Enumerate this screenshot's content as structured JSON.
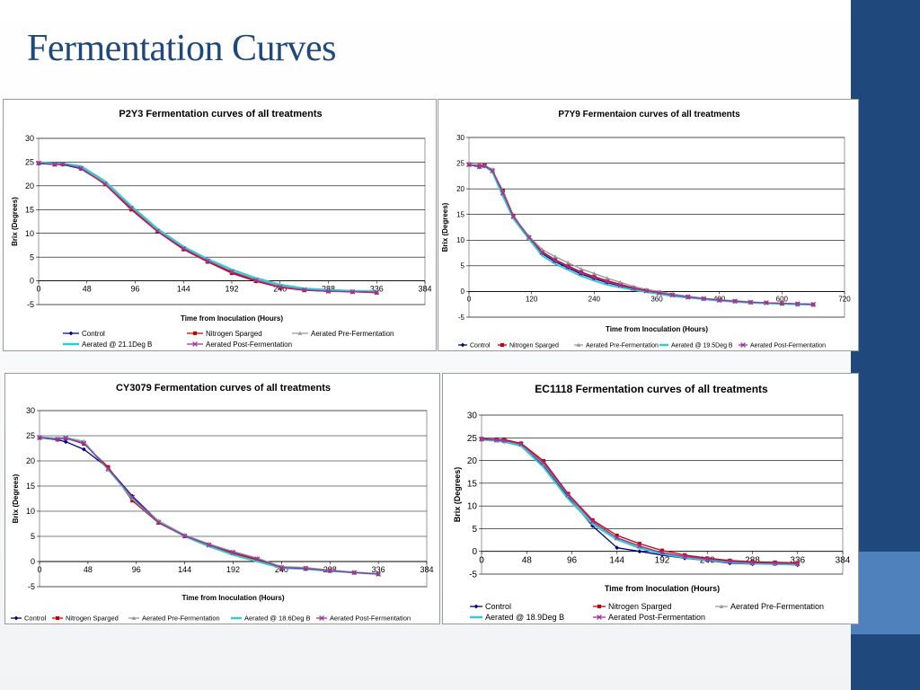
{
  "slide": {
    "title": "Fermentation Curves"
  },
  "colors": {
    "accent_dark": "#1f497d",
    "accent_light": "#4f81bd"
  },
  "chart_data": [
    {
      "type": "line",
      "title": "P2Y3 Fermentation curves of all treatments",
      "xlabel": "Time from Inoculation (Hours)",
      "ylabel": "Brix (Degrees)",
      "xlim": [
        0,
        384
      ],
      "ylim": [
        -5,
        30
      ],
      "x_ticks": [
        0,
        48,
        96,
        144,
        192,
        240,
        288,
        336,
        384
      ],
      "y_ticks": [
        -5,
        0,
        5,
        10,
        15,
        20,
        25,
        30
      ],
      "grid": "horizontal",
      "legend": "bottom",
      "series": [
        {
          "name": "Control",
          "color": "#000080",
          "marker": "diamond",
          "x": [
            0,
            16,
            24,
            42,
            66,
            92,
            118,
            144,
            168,
            192,
            216,
            240,
            264,
            288,
            312,
            336
          ],
          "y": [
            24.7,
            24.5,
            24.5,
            23.6,
            20.4,
            15.2,
            10.5,
            6.8,
            4.1,
            1.8,
            0.0,
            -1.3,
            -1.9,
            -2.2,
            -2.3,
            -2.4
          ]
        },
        {
          "name": "Nitrogen Sparged",
          "color": "#cc0000",
          "marker": "square",
          "x": [
            0,
            16,
            24,
            42,
            66,
            92,
            118,
            144,
            168,
            192,
            216,
            240,
            264,
            288,
            312,
            336
          ],
          "y": [
            24.8,
            24.5,
            24.6,
            23.8,
            20.3,
            15.0,
            10.4,
            6.6,
            4.0,
            1.6,
            -0.1,
            -1.4,
            -2.0,
            -2.2,
            -2.3,
            -2.5
          ]
        },
        {
          "name": "Aerated Pre-Fermentation",
          "color": "#999999",
          "marker": "triangle",
          "x": [
            0,
            16,
            24,
            42,
            66,
            92,
            118,
            144,
            168,
            192,
            216,
            240,
            264,
            288,
            312,
            336
          ],
          "y": [
            24.9,
            24.6,
            24.7,
            24.0,
            20.6,
            15.4,
            10.7,
            7.0,
            4.3,
            2.0,
            0.3,
            -1.1,
            -1.8,
            -2.1,
            -2.2,
            -2.3
          ]
        },
        {
          "name": "Aerated @ 21.1Deg B",
          "color": "#33cccc",
          "marker": "none",
          "x": [
            0,
            16,
            24,
            42,
            66,
            92,
            118,
            144,
            168,
            192,
            216,
            240,
            264,
            288,
            312,
            336
          ],
          "y": [
            25.0,
            24.7,
            24.7,
            24.2,
            21.0,
            15.8,
            11.0,
            7.2,
            4.6,
            2.4,
            0.6,
            -0.8,
            -1.6,
            -1.9,
            -2.1,
            -2.2
          ]
        },
        {
          "name": "Aerated Post-Fermentation",
          "color": "#993399",
          "marker": "x",
          "x": [
            0,
            16,
            24,
            42,
            66,
            92,
            118,
            144,
            168,
            192,
            216,
            240,
            264,
            288,
            312,
            336
          ],
          "y": [
            24.8,
            24.5,
            24.6,
            23.7,
            20.4,
            15.3,
            10.5,
            6.8,
            4.2,
            1.9,
            0.1,
            -1.3,
            -1.9,
            -2.2,
            -2.3,
            -2.4
          ]
        }
      ]
    },
    {
      "type": "line",
      "title": "P7Y9 Fermentaion curves of all treatments",
      "xlabel": "Time from Inoculation (Hours)",
      "ylabel": "Brix (Degrees)",
      "xlim": [
        0,
        720
      ],
      "ylim": [
        -5,
        30
      ],
      "x_ticks": [
        0,
        120,
        240,
        360,
        480,
        600,
        720
      ],
      "y_ticks": [
        -5,
        0,
        5,
        10,
        15,
        20,
        25,
        30
      ],
      "grid": "horizontal",
      "legend": "bottom",
      "series": [
        {
          "name": "Control",
          "color": "#000080",
          "marker": "diamond",
          "x": [
            0,
            20,
            30,
            45,
            65,
            85,
            115,
            140,
            165,
            190,
            215,
            240,
            265,
            290,
            315,
            340,
            365,
            390,
            420,
            450,
            480,
            510,
            540,
            570,
            600,
            630,
            660
          ],
          "y": [
            24.7,
            24.2,
            24.4,
            23.4,
            18.8,
            14.4,
            10.4,
            7.4,
            5.8,
            4.6,
            3.4,
            2.5,
            1.7,
            1.1,
            0.5,
            0.1,
            -0.3,
            -0.7,
            -1.1,
            -1.4,
            -1.7,
            -1.9,
            -2.1,
            -2.2,
            -2.3,
            -2.4,
            -2.5
          ]
        },
        {
          "name": "Nitrogen Sparged",
          "color": "#cc0000",
          "marker": "square",
          "x": [
            0,
            20,
            30,
            45,
            65,
            85,
            115,
            140,
            165,
            190,
            215,
            240,
            265,
            290,
            315,
            340,
            365,
            390,
            420,
            450,
            480,
            510,
            540,
            570,
            600,
            630,
            660
          ],
          "y": [
            24.8,
            24.5,
            24.6,
            23.6,
            19.6,
            14.8,
            10.6,
            7.8,
            6.2,
            5.0,
            3.8,
            2.9,
            2.1,
            1.4,
            0.7,
            0.2,
            -0.2,
            -0.6,
            -1.0,
            -1.4,
            -1.7,
            -1.9,
            -2.1,
            -2.2,
            -2.4,
            -2.5,
            -2.6
          ]
        },
        {
          "name": "Aerated Pre-Fermentation",
          "color": "#999999",
          "marker": "triangle",
          "x": [
            0,
            20,
            30,
            45,
            65,
            85,
            115,
            140,
            165,
            190,
            215,
            240,
            265,
            290,
            315,
            340,
            365,
            390,
            420,
            450,
            480,
            510,
            540,
            570,
            600,
            630,
            660
          ],
          "y": [
            24.9,
            24.3,
            24.5,
            23.8,
            19.4,
            14.6,
            10.8,
            8.2,
            6.8,
            5.6,
            4.4,
            3.5,
            2.6,
            1.8,
            1.0,
            0.4,
            0.0,
            -0.5,
            -0.9,
            -1.3,
            -1.6,
            -1.8,
            -2.0,
            -2.2,
            -2.3,
            -2.4,
            -2.5
          ]
        },
        {
          "name": "Aerated @ 19.5Deg B",
          "color": "#33cccc",
          "marker": "none",
          "x": [
            0,
            20,
            30,
            45,
            65,
            85,
            115,
            140,
            165,
            190,
            215,
            240,
            265,
            290,
            315,
            340,
            365,
            390,
            420,
            450,
            480,
            510,
            540,
            570,
            600,
            630,
            660
          ],
          "y": [
            24.7,
            24.3,
            24.4,
            23.3,
            18.6,
            14.2,
            10.2,
            7.0,
            5.4,
            4.2,
            3.0,
            2.1,
            1.3,
            0.8,
            0.3,
            -0.1,
            -0.5,
            -0.9,
            -1.2,
            -1.5,
            -1.8,
            -2.0,
            -2.2,
            -2.3,
            -2.4,
            -2.5,
            -2.6
          ]
        },
        {
          "name": "Aerated Post-Fermentation",
          "color": "#993399",
          "marker": "x",
          "x": [
            0,
            20,
            30,
            45,
            65,
            85,
            115,
            140,
            165,
            190,
            215,
            240,
            265,
            290,
            315,
            340,
            365,
            390,
            420,
            450,
            480,
            510,
            540,
            570,
            600,
            630,
            660
          ],
          "y": [
            24.7,
            24.3,
            24.5,
            23.5,
            19.2,
            14.6,
            10.5,
            7.6,
            6.0,
            4.8,
            3.6,
            2.7,
            1.9,
            1.2,
            0.6,
            0.1,
            -0.3,
            -0.7,
            -1.1,
            -1.4,
            -1.7,
            -1.9,
            -2.1,
            -2.2,
            -2.3,
            -2.4,
            -2.5
          ]
        }
      ]
    },
    {
      "type": "line",
      "title": "CY3079 Fermentation curves of all treatments",
      "xlabel": "Time from Inoculation (Hours)",
      "ylabel": "Brix (Degrees)",
      "xlim": [
        0,
        384
      ],
      "ylim": [
        -5,
        30
      ],
      "x_ticks": [
        0,
        48,
        96,
        144,
        192,
        240,
        288,
        336,
        384
      ],
      "y_ticks": [
        -5,
        0,
        5,
        10,
        15,
        20,
        25,
        30
      ],
      "grid": "horizontal",
      "legend": "bottom",
      "series": [
        {
          "name": "Control",
          "color": "#000080",
          "marker": "diamond",
          "x": [
            0,
            18,
            26,
            44,
            68,
            92,
            118,
            144,
            168,
            192,
            216,
            240,
            264,
            288,
            312,
            336
          ],
          "y": [
            24.6,
            24.2,
            23.8,
            22.3,
            18.6,
            13.0,
            8.0,
            5.2,
            3.4,
            1.9,
            0.6,
            -1.1,
            -1.5,
            -1.9,
            -2.2,
            -2.5
          ]
        },
        {
          "name": "Nitrogen Sparged",
          "color": "#cc0000",
          "marker": "square",
          "x": [
            0,
            18,
            26,
            44,
            68,
            92,
            118,
            144,
            168,
            192,
            216,
            240,
            264,
            288,
            312,
            336
          ],
          "y": [
            24.7,
            24.3,
            24.5,
            23.4,
            18.8,
            12.1,
            7.7,
            5.0,
            3.2,
            1.6,
            0.3,
            -1.4,
            -1.3,
            -1.8,
            -2.2,
            -2.5
          ]
        },
        {
          "name": "Aerated Pre-Fermentation",
          "color": "#999999",
          "marker": "triangle",
          "x": [
            0,
            18,
            26,
            44,
            68,
            92,
            118,
            144,
            168,
            192,
            216,
            240,
            264,
            288,
            312,
            336
          ],
          "y": [
            24.8,
            24.5,
            24.7,
            23.9,
            18.2,
            12.6,
            8.1,
            5.3,
            3.5,
            2.0,
            0.7,
            -1.0,
            -1.2,
            -1.7,
            -2.1,
            -2.4
          ]
        },
        {
          "name": "Aerated @ 18.6Deg B",
          "color": "#33cccc",
          "marker": "none",
          "x": [
            0,
            18,
            26,
            44,
            68,
            92,
            118,
            144,
            168,
            192,
            216,
            240,
            264,
            288,
            312,
            336
          ],
          "y": [
            24.7,
            24.4,
            24.6,
            23.6,
            18.4,
            12.5,
            7.9,
            5.0,
            3.0,
            1.3,
            0.0,
            -1.3,
            -1.5,
            -1.9,
            -2.2,
            -2.5
          ]
        },
        {
          "name": "Aerated Post-Fermentation",
          "color": "#993399",
          "marker": "x",
          "x": [
            0,
            18,
            26,
            44,
            68,
            92,
            118,
            144,
            168,
            192,
            216,
            240,
            264,
            288,
            312,
            336
          ],
          "y": [
            24.6,
            24.3,
            24.5,
            23.5,
            18.5,
            12.8,
            7.8,
            5.1,
            3.3,
            1.8,
            0.5,
            -1.2,
            -1.4,
            -1.8,
            -2.2,
            -2.5
          ]
        }
      ]
    },
    {
      "type": "line",
      "title": "EC1118 Fermentation curves of all treatments",
      "xlabel": "Time from Inoculation (Hours)",
      "ylabel": "Brix (Degrees)",
      "xlim": [
        0,
        384
      ],
      "ylim": [
        -5,
        30
      ],
      "x_ticks": [
        0,
        48,
        96,
        144,
        192,
        240,
        288,
        336,
        384
      ],
      "y_ticks": [
        -5,
        0,
        5,
        10,
        15,
        20,
        25,
        30
      ],
      "grid": "horizontal",
      "legend": "bottom",
      "series": [
        {
          "name": "Control",
          "color": "#000080",
          "marker": "diamond",
          "x": [
            0,
            16,
            24,
            42,
            66,
            92,
            118,
            144,
            168,
            192,
            216,
            240,
            264,
            288,
            312,
            336
          ],
          "y": [
            24.6,
            24.4,
            24.2,
            23.4,
            18.8,
            12.0,
            5.6,
            0.8,
            0.0,
            -0.8,
            -1.5,
            -2.0,
            -2.6,
            -2.8,
            -2.8,
            -3.0
          ]
        },
        {
          "name": "Nitrogen Sparged",
          "color": "#cc0000",
          "marker": "square",
          "x": [
            0,
            16,
            24,
            42,
            66,
            92,
            118,
            144,
            168,
            192,
            216,
            240,
            264,
            288,
            312,
            336
          ],
          "y": [
            24.8,
            24.6,
            24.6,
            23.8,
            19.9,
            12.7,
            6.9,
            3.5,
            1.7,
            0.2,
            -0.8,
            -1.5,
            -2.0,
            -2.3,
            -2.4,
            -2.5
          ]
        },
        {
          "name": "Aerated Pre-Fermentation",
          "color": "#999999",
          "marker": "triangle",
          "x": [
            0,
            16,
            24,
            42,
            66,
            92,
            118,
            144,
            168,
            192,
            216,
            240,
            264,
            288,
            312,
            336
          ],
          "y": [
            24.7,
            24.4,
            24.3,
            23.5,
            19.2,
            12.3,
            6.3,
            2.8,
            1.0,
            -0.4,
            -1.2,
            -1.8,
            -2.3,
            -2.6,
            -2.7,
            -2.8
          ]
        },
        {
          "name": "Aerated @ 18.9Deg B",
          "color": "#33cccc",
          "marker": "none",
          "x": [
            0,
            16,
            24,
            42,
            66,
            92,
            118,
            144,
            168,
            192,
            216,
            240,
            264,
            288,
            312,
            336
          ],
          "y": [
            24.6,
            24.3,
            24.1,
            23.2,
            18.5,
            11.6,
            6.0,
            2.6,
            0.7,
            -0.6,
            -1.4,
            -1.9,
            -2.4,
            -2.7,
            -2.8,
            -2.9
          ]
        },
        {
          "name": "Aerated Post-Fermentation",
          "color": "#993399",
          "marker": "x",
          "x": [
            0,
            16,
            24,
            42,
            66,
            92,
            118,
            144,
            168,
            192,
            216,
            240,
            264,
            288,
            312,
            336
          ],
          "y": [
            24.7,
            24.5,
            24.4,
            23.6,
            19.5,
            12.5,
            6.6,
            3.0,
            1.2,
            -0.3,
            -1.1,
            -1.7,
            -2.2,
            -2.5,
            -2.6,
            -2.7
          ]
        }
      ]
    }
  ]
}
